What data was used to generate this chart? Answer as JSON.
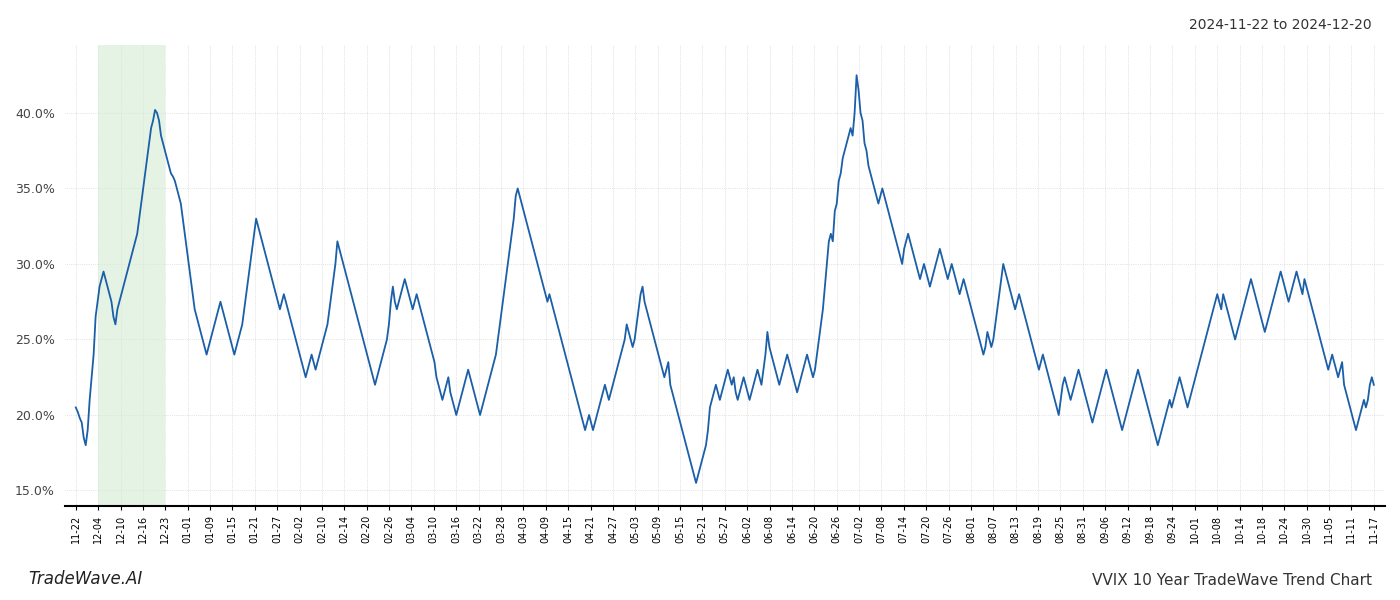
{
  "title_top_right": "2024-11-22 to 2024-12-20",
  "bottom_left": "TradeWave.AI",
  "bottom_right": "VVIX 10 Year TradeWave Trend Chart",
  "line_color": "#1a5fa8",
  "line_width": 1.3,
  "shade_color": "#d4ecd4",
  "shade_alpha": 0.6,
  "background_color": "#ffffff",
  "grid_color": "#cccccc",
  "ylim": [
    14.0,
    44.5
  ],
  "yticks": [
    15.0,
    20.0,
    25.0,
    30.0,
    35.0,
    40.0
  ],
  "xtick_labels": [
    "11-22",
    "12-04",
    "12-10",
    "12-16",
    "12-23",
    "01-01",
    "01-09",
    "01-15",
    "01-21",
    "01-27",
    "02-02",
    "02-10",
    "02-14",
    "02-20",
    "02-26",
    "03-04",
    "03-10",
    "03-16",
    "03-22",
    "03-28",
    "04-03",
    "04-09",
    "04-15",
    "04-21",
    "04-27",
    "05-03",
    "05-09",
    "05-15",
    "05-21",
    "05-27",
    "06-02",
    "06-08",
    "06-14",
    "06-20",
    "06-26",
    "07-02",
    "07-08",
    "07-14",
    "07-20",
    "07-26",
    "08-01",
    "08-07",
    "08-13",
    "08-19",
    "08-25",
    "08-31",
    "09-06",
    "09-12",
    "09-18",
    "09-24",
    "10-01",
    "10-08",
    "10-14",
    "10-18",
    "10-24",
    "10-30",
    "11-05",
    "11-11",
    "11-17"
  ],
  "shade_x_start_label": "12-04",
  "shade_x_end_label": "12-23",
  "values": [
    20.5,
    20.2,
    19.8,
    19.5,
    18.5,
    18.0,
    19.0,
    21.0,
    22.5,
    24.0,
    26.5,
    27.5,
    28.5,
    29.0,
    29.5,
    29.0,
    28.5,
    28.0,
    27.5,
    26.5,
    26.0,
    27.0,
    27.5,
    28.0,
    28.5,
    29.0,
    29.5,
    30.0,
    30.5,
    31.0,
    31.5,
    32.0,
    33.0,
    34.0,
    35.0,
    36.0,
    37.0,
    38.0,
    39.0,
    39.5,
    40.2,
    40.0,
    39.5,
    38.5,
    38.0,
    37.5,
    37.0,
    36.5,
    36.0,
    35.8,
    35.5,
    35.0,
    34.5,
    34.0,
    33.0,
    32.0,
    31.0,
    30.0,
    29.0,
    28.0,
    27.0,
    26.5,
    26.0,
    25.5,
    25.0,
    24.5,
    24.0,
    24.5,
    25.0,
    25.5,
    26.0,
    26.5,
    27.0,
    27.5,
    27.0,
    26.5,
    26.0,
    25.5,
    25.0,
    24.5,
    24.0,
    24.5,
    25.0,
    25.5,
    26.0,
    27.0,
    28.0,
    29.0,
    30.0,
    31.0,
    32.0,
    33.0,
    32.5,
    32.0,
    31.5,
    31.0,
    30.5,
    30.0,
    29.5,
    29.0,
    28.5,
    28.0,
    27.5,
    27.0,
    27.5,
    28.0,
    27.5,
    27.0,
    26.5,
    26.0,
    25.5,
    25.0,
    24.5,
    24.0,
    23.5,
    23.0,
    22.5,
    23.0,
    23.5,
    24.0,
    23.5,
    23.0,
    23.5,
    24.0,
    24.5,
    25.0,
    25.5,
    26.0,
    27.0,
    28.0,
    29.0,
    30.0,
    31.5,
    31.0,
    30.5,
    30.0,
    29.5,
    29.0,
    28.5,
    28.0,
    27.5,
    27.0,
    26.5,
    26.0,
    25.5,
    25.0,
    24.5,
    24.0,
    23.5,
    23.0,
    22.5,
    22.0,
    22.5,
    23.0,
    23.5,
    24.0,
    24.5,
    25.0,
    26.0,
    27.5,
    28.5,
    27.5,
    27.0,
    27.5,
    28.0,
    28.5,
    29.0,
    28.5,
    28.0,
    27.5,
    27.0,
    27.5,
    28.0,
    27.5,
    27.0,
    26.5,
    26.0,
    25.5,
    25.0,
    24.5,
    24.0,
    23.5,
    22.5,
    22.0,
    21.5,
    21.0,
    21.5,
    22.0,
    22.5,
    21.5,
    21.0,
    20.5,
    20.0,
    20.5,
    21.0,
    21.5,
    22.0,
    22.5,
    23.0,
    22.5,
    22.0,
    21.5,
    21.0,
    20.5,
    20.0,
    20.5,
    21.0,
    21.5,
    22.0,
    22.5,
    23.0,
    23.5,
    24.0,
    25.0,
    26.0,
    27.0,
    28.0,
    29.0,
    30.0,
    31.0,
    32.0,
    33.0,
    34.5,
    35.0,
    34.5,
    34.0,
    33.5,
    33.0,
    32.5,
    32.0,
    31.5,
    31.0,
    30.5,
    30.0,
    29.5,
    29.0,
    28.5,
    28.0,
    27.5,
    28.0,
    27.5,
    27.0,
    26.5,
    26.0,
    25.5,
    25.0,
    24.5,
    24.0,
    23.5,
    23.0,
    22.5,
    22.0,
    21.5,
    21.0,
    20.5,
    20.0,
    19.5,
    19.0,
    19.5,
    20.0,
    19.5,
    19.0,
    19.5,
    20.0,
    20.5,
    21.0,
    21.5,
    22.0,
    21.5,
    21.0,
    21.5,
    22.0,
    22.5,
    23.0,
    23.5,
    24.0,
    24.5,
    25.0,
    26.0,
    25.5,
    25.0,
    24.5,
    25.0,
    26.0,
    27.0,
    28.0,
    28.5,
    27.5,
    27.0,
    26.5,
    26.0,
    25.5,
    25.0,
    24.5,
    24.0,
    23.5,
    23.0,
    22.5,
    23.0,
    23.5,
    22.0,
    21.5,
    21.0,
    20.5,
    20.0,
    19.5,
    19.0,
    18.5,
    18.0,
    17.5,
    17.0,
    16.5,
    16.0,
    15.5,
    16.0,
    16.5,
    17.0,
    17.5,
    18.0,
    19.0,
    20.5,
    21.0,
    21.5,
    22.0,
    21.5,
    21.0,
    21.5,
    22.0,
    22.5,
    23.0,
    22.5,
    22.0,
    22.5,
    21.5,
    21.0,
    21.5,
    22.0,
    22.5,
    22.0,
    21.5,
    21.0,
    21.5,
    22.0,
    22.5,
    23.0,
    22.5,
    22.0,
    23.0,
    24.0,
    25.5,
    24.5,
    24.0,
    23.5,
    23.0,
    22.5,
    22.0,
    22.5,
    23.0,
    23.5,
    24.0,
    23.5,
    23.0,
    22.5,
    22.0,
    21.5,
    22.0,
    22.5,
    23.0,
    23.5,
    24.0,
    23.5,
    23.0,
    22.5,
    23.0,
    24.0,
    25.0,
    26.0,
    27.0,
    28.5,
    30.0,
    31.5,
    32.0,
    31.5,
    33.5,
    34.0,
    35.5,
    36.0,
    37.0,
    37.5,
    38.0,
    38.5,
    39.0,
    38.5,
    40.0,
    42.5,
    41.5,
    40.0,
    39.5,
    38.0,
    37.5,
    36.5,
    36.0,
    35.5,
    35.0,
    34.5,
    34.0,
    34.5,
    35.0,
    34.5,
    34.0,
    33.5,
    33.0,
    32.5,
    32.0,
    31.5,
    31.0,
    30.5,
    30.0,
    31.0,
    31.5,
    32.0,
    31.5,
    31.0,
    30.5,
    30.0,
    29.5,
    29.0,
    29.5,
    30.0,
    29.5,
    29.0,
    28.5,
    29.0,
    29.5,
    30.0,
    30.5,
    31.0,
    30.5,
    30.0,
    29.5,
    29.0,
    29.5,
    30.0,
    29.5,
    29.0,
    28.5,
    28.0,
    28.5,
    29.0,
    28.5,
    28.0,
    27.5,
    27.0,
    26.5,
    26.0,
    25.5,
    25.0,
    24.5,
    24.0,
    24.5,
    25.5,
    25.0,
    24.5,
    25.0,
    26.0,
    27.0,
    28.0,
    29.0,
    30.0,
    29.5,
    29.0,
    28.5,
    28.0,
    27.5,
    27.0,
    27.5,
    28.0,
    27.5,
    27.0,
    26.5,
    26.0,
    25.5,
    25.0,
    24.5,
    24.0,
    23.5,
    23.0,
    23.5,
    24.0,
    23.5,
    23.0,
    22.5,
    22.0,
    21.5,
    21.0,
    20.5,
    20.0,
    21.0,
    22.0,
    22.5,
    22.0,
    21.5,
    21.0,
    21.5,
    22.0,
    22.5,
    23.0,
    22.5,
    22.0,
    21.5,
    21.0,
    20.5,
    20.0,
    19.5,
    20.0,
    20.5,
    21.0,
    21.5,
    22.0,
    22.5,
    23.0,
    22.5,
    22.0,
    21.5,
    21.0,
    20.5,
    20.0,
    19.5,
    19.0,
    19.5,
    20.0,
    20.5,
    21.0,
    21.5,
    22.0,
    22.5,
    23.0,
    22.5,
    22.0,
    21.5,
    21.0,
    20.5,
    20.0,
    19.5,
    19.0,
    18.5,
    18.0,
    18.5,
    19.0,
    19.5,
    20.0,
    20.5,
    21.0,
    20.5,
    21.0,
    21.5,
    22.0,
    22.5,
    22.0,
    21.5,
    21.0,
    20.5,
    21.0,
    21.5,
    22.0,
    22.5,
    23.0,
    23.5,
    24.0,
    24.5,
    25.0,
    25.5,
    26.0,
    26.5,
    27.0,
    27.5,
    28.0,
    27.5,
    27.0,
    28.0,
    27.5,
    27.0,
    26.5,
    26.0,
    25.5,
    25.0,
    25.5,
    26.0,
    26.5,
    27.0,
    27.5,
    28.0,
    28.5,
    29.0,
    28.5,
    28.0,
    27.5,
    27.0,
    26.5,
    26.0,
    25.5,
    26.0,
    26.5,
    27.0,
    27.5,
    28.0,
    28.5,
    29.0,
    29.5,
    29.0,
    28.5,
    28.0,
    27.5,
    28.0,
    28.5,
    29.0,
    29.5,
    29.0,
    28.5,
    28.0,
    29.0,
    28.5,
    28.0,
    27.5,
    27.0,
    26.5,
    26.0,
    25.5,
    25.0,
    24.5,
    24.0,
    23.5,
    23.0,
    23.5,
    24.0,
    23.5,
    23.0,
    22.5,
    23.0,
    23.5,
    22.0,
    21.5,
    21.0,
    20.5,
    20.0,
    19.5,
    19.0,
    19.5,
    20.0,
    20.5,
    21.0,
    20.5,
    21.0,
    22.0,
    22.5,
    22.0
  ]
}
